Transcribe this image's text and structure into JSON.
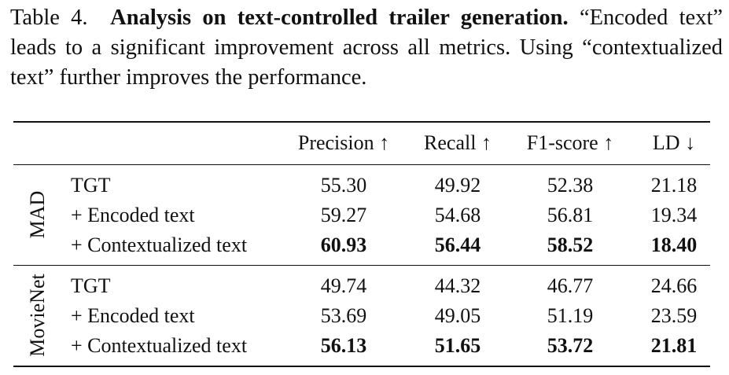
{
  "caption": {
    "label": "Table 4.",
    "title": "Analysis on text-controlled trailer generation.",
    "text": "“Encoded text” leads to a significant improvement across all metrics. Using “contextualized text” further improves the performance."
  },
  "table": {
    "headers": [
      "Precision ↑",
      "Recall ↑",
      "F1-score ↑",
      "LD ↓"
    ],
    "groups": [
      {
        "name": "MAD",
        "rows": [
          {
            "method": "TGT",
            "values": [
              "55.30",
              "49.92",
              "52.38",
              "21.18"
            ],
            "bold": false
          },
          {
            "method": "+ Encoded text",
            "values": [
              "59.27",
              "54.68",
              "56.81",
              "19.34"
            ],
            "bold": false
          },
          {
            "method": "+ Contextualized text",
            "values": [
              "60.93",
              "56.44",
              "58.52",
              "18.40"
            ],
            "bold": true
          }
        ]
      },
      {
        "name": "MovieNet",
        "rows": [
          {
            "method": "TGT",
            "values": [
              "49.74",
              "44.32",
              "46.77",
              "24.66"
            ],
            "bold": false
          },
          {
            "method": "+ Encoded text",
            "values": [
              "53.69",
              "49.05",
              "51.19",
              "23.59"
            ],
            "bold": false
          },
          {
            "method": "+ Contextualized text",
            "values": [
              "56.13",
              "51.65",
              "53.72",
              "21.81"
            ],
            "bold": true
          }
        ]
      }
    ]
  }
}
